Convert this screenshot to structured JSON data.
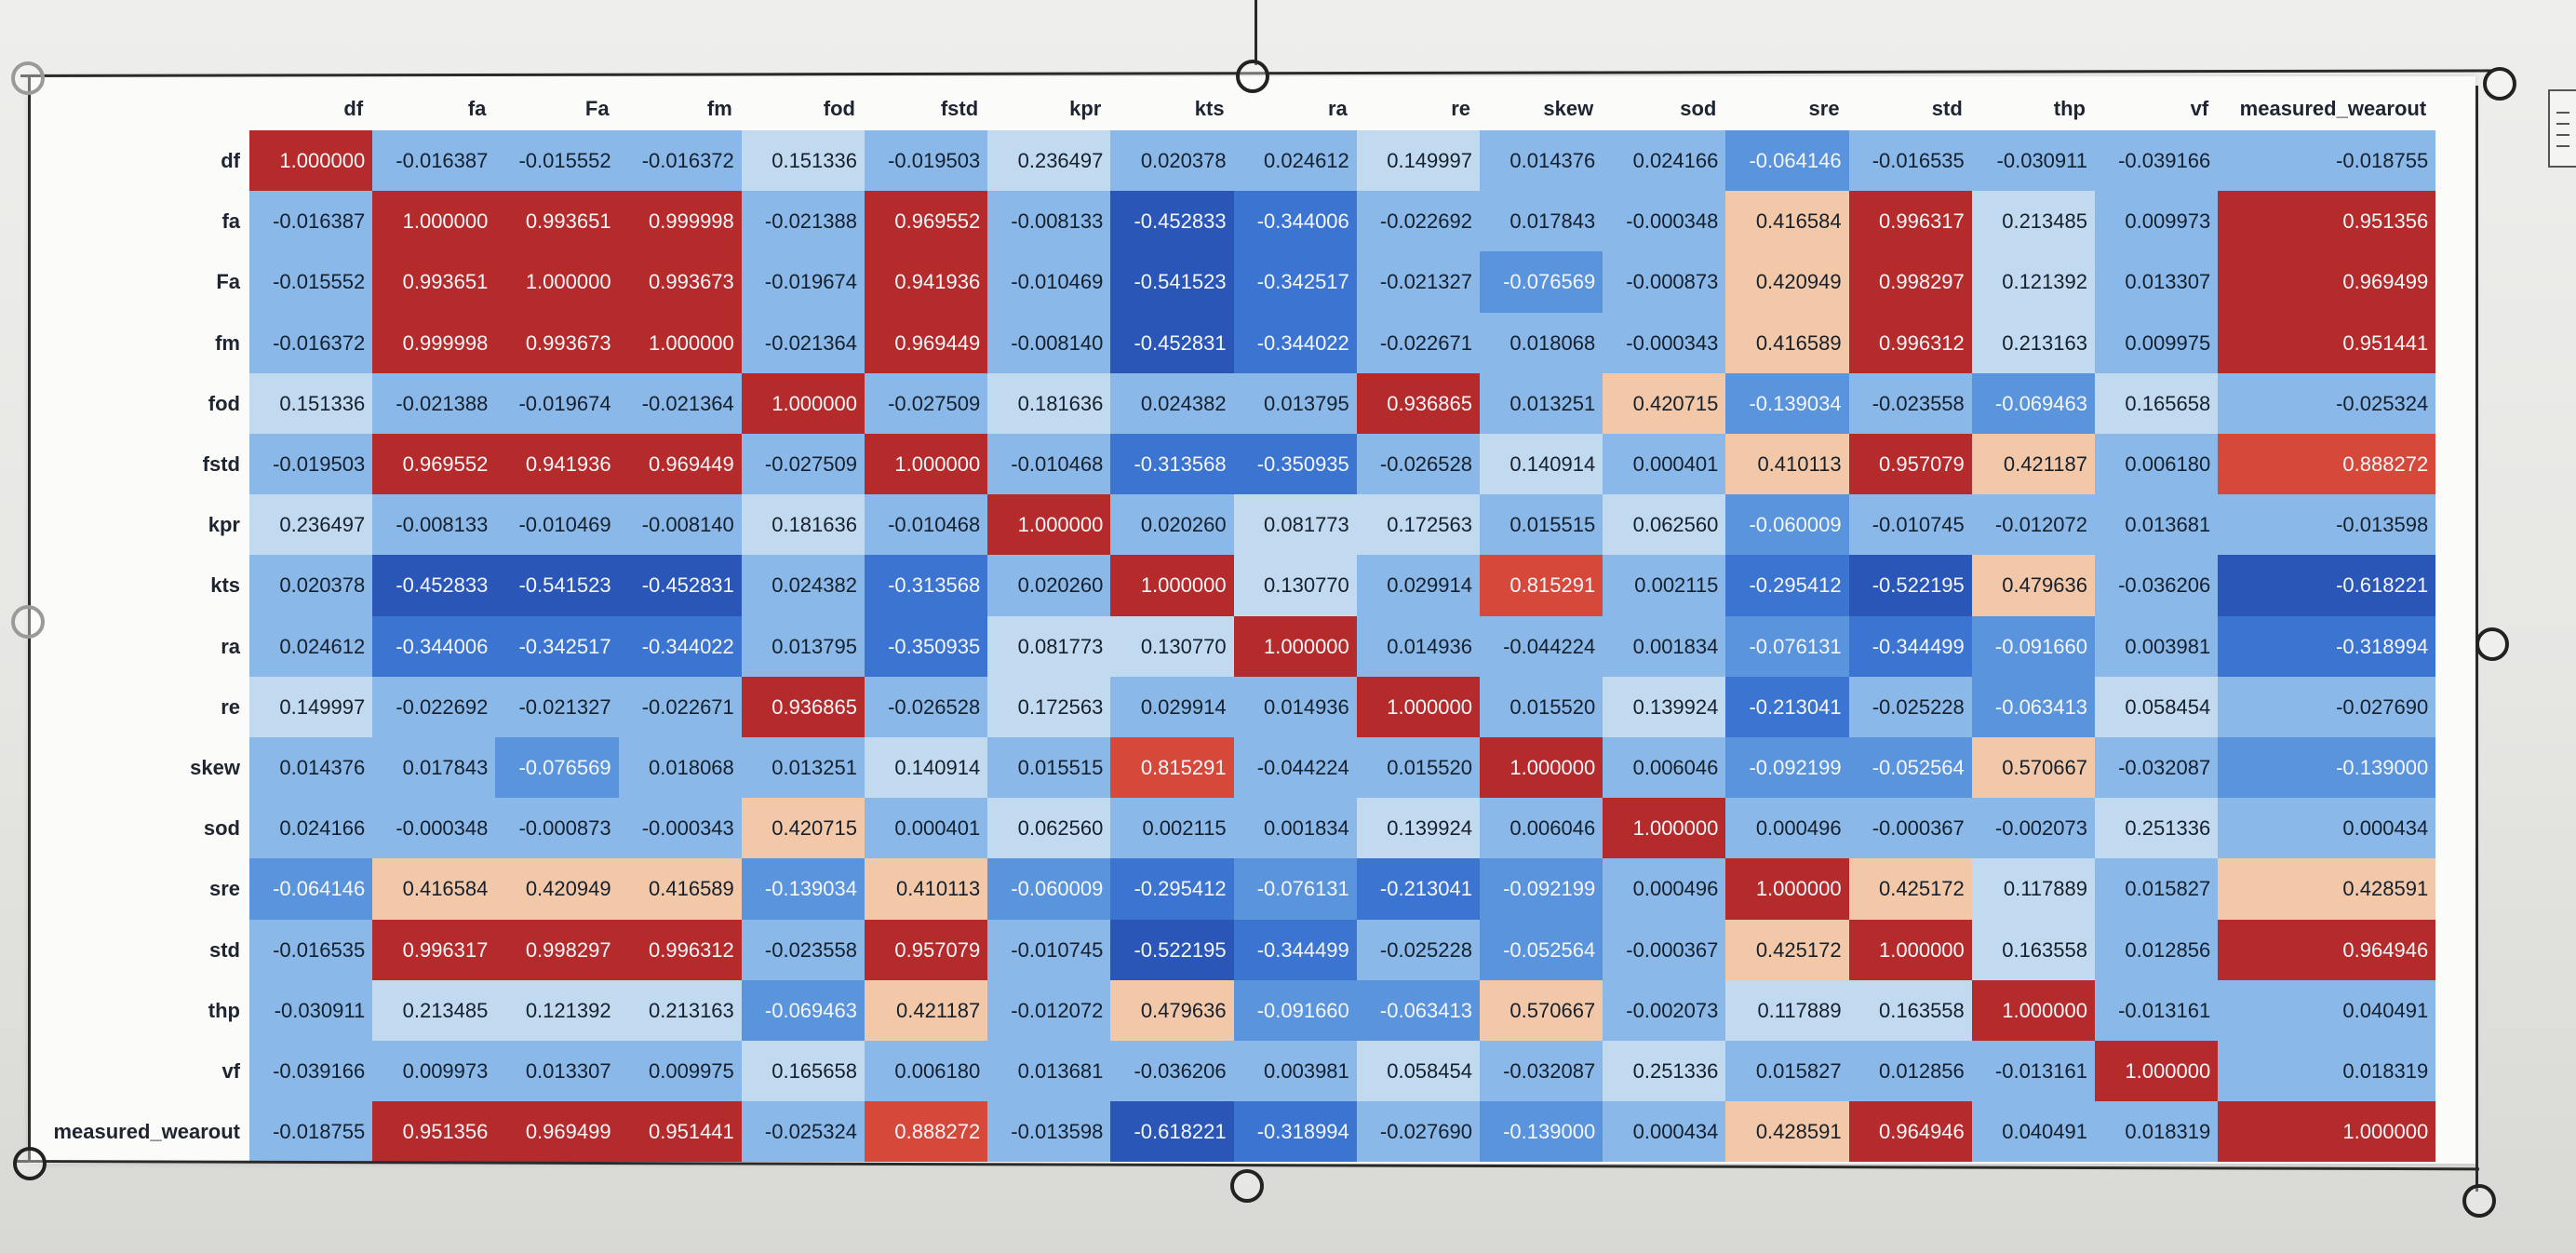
{
  "table": {
    "columns": [
      "df",
      "fa",
      "Fa",
      "fm",
      "fod",
      "fstd",
      "kpr",
      "kts",
      "ra",
      "re",
      "skew",
      "sod",
      "sre",
      "std",
      "thp",
      "vf",
      "measured_wearout"
    ],
    "rows": [
      {
        "label": "df",
        "values": [
          "1.000000",
          "-0.016387",
          "-0.015552",
          "-0.016372",
          "0.151336",
          "-0.019503",
          "0.236497",
          "0.020378",
          "0.024612",
          "0.149997",
          "0.014376",
          "0.024166",
          "-0.064146",
          "-0.016535",
          "-0.030911",
          "-0.039166",
          "-0.018755"
        ]
      },
      {
        "label": "fa",
        "values": [
          "-0.016387",
          "1.000000",
          "0.993651",
          "0.999998",
          "-0.021388",
          "0.969552",
          "-0.008133",
          "-0.452833",
          "-0.344006",
          "-0.022692",
          "0.017843",
          "-0.000348",
          "0.416584",
          "0.996317",
          "0.213485",
          "0.009973",
          "0.951356"
        ]
      },
      {
        "label": "Fa",
        "values": [
          "-0.015552",
          "0.993651",
          "1.000000",
          "0.993673",
          "-0.019674",
          "0.941936",
          "-0.010469",
          "-0.541523",
          "-0.342517",
          "-0.021327",
          "-0.076569",
          "-0.000873",
          "0.420949",
          "0.998297",
          "0.121392",
          "0.013307",
          "0.969499"
        ]
      },
      {
        "label": "fm",
        "values": [
          "-0.016372",
          "0.999998",
          "0.993673",
          "1.000000",
          "-0.021364",
          "0.969449",
          "-0.008140",
          "-0.452831",
          "-0.344022",
          "-0.022671",
          "0.018068",
          "-0.000343",
          "0.416589",
          "0.996312",
          "0.213163",
          "0.009975",
          "0.951441"
        ]
      },
      {
        "label": "fod",
        "values": [
          "0.151336",
          "-0.021388",
          "-0.019674",
          "-0.021364",
          "1.000000",
          "-0.027509",
          "0.181636",
          "0.024382",
          "0.013795",
          "0.936865",
          "0.013251",
          "0.420715",
          "-0.139034",
          "-0.023558",
          "-0.069463",
          "0.165658",
          "-0.025324"
        ]
      },
      {
        "label": "fstd",
        "values": [
          "-0.019503",
          "0.969552",
          "0.941936",
          "0.969449",
          "-0.027509",
          "1.000000",
          "-0.010468",
          "-0.313568",
          "-0.350935",
          "-0.026528",
          "0.140914",
          "0.000401",
          "0.410113",
          "0.957079",
          "0.421187",
          "0.006180",
          "0.888272"
        ]
      },
      {
        "label": "kpr",
        "values": [
          "0.236497",
          "-0.008133",
          "-0.010469",
          "-0.008140",
          "0.181636",
          "-0.010468",
          "1.000000",
          "0.020260",
          "0.081773",
          "0.172563",
          "0.015515",
          "0.062560",
          "-0.060009",
          "-0.010745",
          "-0.012072",
          "0.013681",
          "-0.013598"
        ]
      },
      {
        "label": "kts",
        "values": [
          "0.020378",
          "-0.452833",
          "-0.541523",
          "-0.452831",
          "0.024382",
          "-0.313568",
          "0.020260",
          "1.000000",
          "0.130770",
          "0.029914",
          "0.815291",
          "0.002115",
          "-0.295412",
          "-0.522195",
          "0.479636",
          "-0.036206",
          "-0.618221"
        ]
      },
      {
        "label": "ra",
        "values": [
          "0.024612",
          "-0.344006",
          "-0.342517",
          "-0.344022",
          "0.013795",
          "-0.350935",
          "0.081773",
          "0.130770",
          "1.000000",
          "0.014936",
          "-0.044224",
          "0.001834",
          "-0.076131",
          "-0.344499",
          "-0.091660",
          "0.003981",
          "-0.318994"
        ]
      },
      {
        "label": "re",
        "values": [
          "0.149997",
          "-0.022692",
          "-0.021327",
          "-0.022671",
          "0.936865",
          "-0.026528",
          "0.172563",
          "0.029914",
          "0.014936",
          "1.000000",
          "0.015520",
          "0.139924",
          "-0.213041",
          "-0.025228",
          "-0.063413",
          "0.058454",
          "-0.027690"
        ]
      },
      {
        "label": "skew",
        "values": [
          "0.014376",
          "0.017843",
          "-0.076569",
          "0.018068",
          "0.013251",
          "0.140914",
          "0.015515",
          "0.815291",
          "-0.044224",
          "0.015520",
          "1.000000",
          "0.006046",
          "-0.092199",
          "-0.052564",
          "0.570667",
          "-0.032087",
          "-0.139000"
        ]
      },
      {
        "label": "sod",
        "values": [
          "0.024166",
          "-0.000348",
          "-0.000873",
          "-0.000343",
          "0.420715",
          "0.000401",
          "0.062560",
          "0.002115",
          "0.001834",
          "0.139924",
          "0.006046",
          "1.000000",
          "0.000496",
          "-0.000367",
          "-0.002073",
          "0.251336",
          "0.000434"
        ]
      },
      {
        "label": "sre",
        "values": [
          "-0.064146",
          "0.416584",
          "0.420949",
          "0.416589",
          "-0.139034",
          "0.410113",
          "-0.060009",
          "-0.295412",
          "-0.076131",
          "-0.213041",
          "-0.092199",
          "0.000496",
          "1.000000",
          "0.425172",
          "0.117889",
          "0.015827",
          "0.428591"
        ]
      },
      {
        "label": "std",
        "values": [
          "-0.016535",
          "0.996317",
          "0.998297",
          "0.996312",
          "-0.023558",
          "0.957079",
          "-0.010745",
          "-0.522195",
          "-0.344499",
          "-0.025228",
          "-0.052564",
          "-0.000367",
          "0.425172",
          "1.000000",
          "0.163558",
          "0.012856",
          "0.964946"
        ]
      },
      {
        "label": "thp",
        "values": [
          "-0.030911",
          "0.213485",
          "0.121392",
          "0.213163",
          "-0.069463",
          "0.421187",
          "-0.012072",
          "0.479636",
          "-0.091660",
          "-0.063413",
          "0.570667",
          "-0.002073",
          "0.117889",
          "0.163558",
          "1.000000",
          "-0.013161",
          "0.040491"
        ]
      },
      {
        "label": "vf",
        "values": [
          "-0.039166",
          "0.009973",
          "0.013307",
          "0.009975",
          "0.165658",
          "0.006180",
          "0.013681",
          "-0.036206",
          "0.003981",
          "0.058454",
          "-0.032087",
          "0.251336",
          "0.015827",
          "0.012856",
          "-0.013161",
          "1.000000",
          "0.018319"
        ]
      },
      {
        "label": "measured_wearout",
        "values": [
          "-0.018755",
          "0.951356",
          "0.969499",
          "0.951441",
          "-0.025324",
          "0.888272",
          "-0.013598",
          "-0.618221",
          "-0.318994",
          "-0.027690",
          "-0.139000",
          "0.000434",
          "0.428591",
          "0.964946",
          "0.040491",
          "0.018319",
          "1.000000"
        ]
      }
    ]
  },
  "colors": {
    "strong_positive": "#b52a2a",
    "positive": "#d6483a",
    "moderate_positive": "#f2c8a8",
    "neutral_light": "#c2daf0",
    "light_blue": "#8ab8e8",
    "mid_blue": "#5a94dc",
    "blue": "#3c74d2",
    "deep_blue": "#2a56b8"
  }
}
